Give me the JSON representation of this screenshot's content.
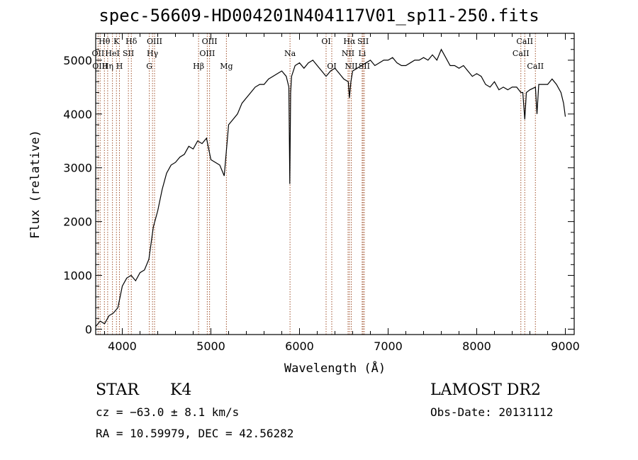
{
  "chart_data": {
    "type": "line",
    "title": "spec-56609-HD004201N404117V01_sp11-250.fits",
    "xlabel": "Wavelength (Å)",
    "ylabel": "Flux (relative)",
    "xlim": [
      3700,
      9100
    ],
    "ylim": [
      -100,
      5500
    ],
    "xticks": [
      4000,
      5000,
      6000,
      7000,
      8000,
      9000
    ],
    "yticks": [
      0,
      1000,
      2000,
      3000,
      4000,
      5000
    ],
    "grid": false,
    "series": [
      {
        "x": [
          3700,
          3750,
          3800,
          3850,
          3900,
          3950,
          4000,
          4050,
          4100,
          4150,
          4200,
          4250,
          4300,
          4350,
          4400,
          4450,
          4500,
          4550,
          4600,
          4650,
          4700,
          4750,
          4800,
          4850,
          4900,
          4950,
          5000,
          5050,
          5100,
          5150,
          5200,
          5250,
          5300,
          5350,
          5400,
          5450,
          5500,
          5550,
          5600,
          5650,
          5700,
          5750,
          5800,
          5850,
          5880,
          5890,
          5900,
          5910,
          5950,
          6000,
          6050,
          6100,
          6150,
          6200,
          6250,
          6300,
          6350,
          6400,
          6450,
          6500,
          6550,
          6563,
          6580,
          6600,
          6650,
          6700,
          6750,
          6800,
          6850,
          6900,
          6950,
          7000,
          7050,
          7100,
          7150,
          7200,
          7250,
          7300,
          7350,
          7400,
          7450,
          7500,
          7550,
          7600,
          7650,
          7700,
          7750,
          7800,
          7850,
          7900,
          7950,
          8000,
          8050,
          8100,
          8150,
          8200,
          8250,
          8300,
          8350,
          8400,
          8450,
          8498,
          8520,
          8542,
          8560,
          8600,
          8662,
          8680,
          8700,
          8750,
          8800,
          8850,
          8900,
          8950,
          8980,
          9000
        ],
        "y": [
          50,
          150,
          100,
          250,
          300,
          400,
          800,
          950,
          1000,
          900,
          1050,
          1100,
          1300,
          1900,
          2200,
          2600,
          2900,
          3050,
          3100,
          3200,
          3250,
          3400,
          3350,
          3500,
          3450,
          3550,
          3150,
          3100,
          3050,
          2850,
          3800,
          3900,
          4000,
          4200,
          4300,
          4400,
          4500,
          4550,
          4550,
          4650,
          4700,
          4750,
          4800,
          4700,
          4500,
          2700,
          4400,
          4700,
          4900,
          4950,
          4850,
          4950,
          5000,
          4900,
          4800,
          4700,
          4800,
          4850,
          4750,
          4650,
          4600,
          4300,
          4600,
          4800,
          4850,
          4900,
          4950,
          5000,
          4900,
          4950,
          5000,
          5000,
          5050,
          4950,
          4900,
          4900,
          4950,
          5000,
          5000,
          5050,
          5000,
          5100,
          5000,
          5200,
          5050,
          4900,
          4900,
          4850,
          4900,
          4800,
          4700,
          4750,
          4700,
          4550,
          4500,
          4600,
          4450,
          4500,
          4450,
          4500,
          4500,
          4400,
          4400,
          3900,
          4400,
          4450,
          4500,
          4000,
          4550,
          4550,
          4550,
          4650,
          4550,
          4400,
          4200,
          3950
        ]
      }
    ],
    "line_markers": [
      {
        "label": "Hθ",
        "x": 3798,
        "row": 0
      },
      {
        "label": "OII",
        "x": 3727,
        "row": 1
      },
      {
        "label": "OIII",
        "x": 3750,
        "row": 2
      },
      {
        "label": "Hη",
        "x": 3835,
        "row": 2
      },
      {
        "label": "K",
        "x": 3934,
        "row": 0
      },
      {
        "label": "HeI",
        "x": 3889,
        "row": 1
      },
      {
        "label": "H",
        "x": 3968,
        "row": 2
      },
      {
        "label": "Hδ",
        "x": 4102,
        "row": 0
      },
      {
        "label": "SII",
        "x": 4069,
        "row": 1
      },
      {
        "label": "OIII",
        "x": 4364,
        "row": 0
      },
      {
        "label": "Hγ",
        "x": 4341,
        "row": 1
      },
      {
        "label": "G",
        "x": 4305,
        "row": 2
      },
      {
        "label": "OIII",
        "x": 4985,
        "row": 0
      },
      {
        "label": "OIII",
        "x": 4959,
        "row": 1
      },
      {
        "label": "Hβ",
        "x": 4861,
        "row": 2
      },
      {
        "label": "Mg",
        "x": 5175,
        "row": 2
      },
      {
        "label": "Na",
        "x": 5893,
        "row": 1
      },
      {
        "label": "OI",
        "x": 6300,
        "row": 0
      },
      {
        "label": "OI",
        "x": 6364,
        "row": 2
      },
      {
        "label": "Hα",
        "x": 6563,
        "row": 0
      },
      {
        "label": "SII",
        "x": 6717,
        "row": 0
      },
      {
        "label": "NII",
        "x": 6548,
        "row": 1
      },
      {
        "label": "Li",
        "x": 6707,
        "row": 1
      },
      {
        "label": "NII",
        "x": 6584,
        "row": 2
      },
      {
        "label": "SII",
        "x": 6731,
        "row": 2
      },
      {
        "label": "CaII",
        "x": 8542,
        "row": 0
      },
      {
        "label": "CaII",
        "x": 8498,
        "row": 1
      },
      {
        "label": "CaII",
        "x": 8662,
        "row": 2
      }
    ]
  },
  "info": {
    "class_type": "STAR",
    "subclass": "K4",
    "survey": "LAMOST DR2",
    "cz": "cz = −63.0 ± 8.1 km/s",
    "obs_date": "Obs-Date: 20131112",
    "radec": "RA =  10.59979, DEC =  42.56282"
  },
  "colors": {
    "line": "#000000",
    "marker": "#a0522d",
    "axes": "#000000"
  }
}
